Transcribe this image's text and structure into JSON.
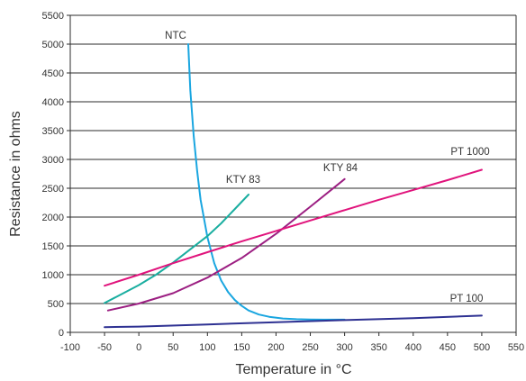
{
  "chart_data": {
    "type": "line",
    "title": "",
    "xlabel": "Temperature in °C",
    "ylabel": "Resistance in ohms",
    "xlim": [
      -100,
      550
    ],
    "ylim": [
      0,
      5500
    ],
    "xticks": [
      -100,
      -50,
      0,
      50,
      100,
      150,
      200,
      250,
      300,
      350,
      400,
      450,
      500,
      550
    ],
    "yticks": [
      0,
      500,
      1000,
      1500,
      2000,
      2500,
      3000,
      3500,
      4000,
      4500,
      5000,
      5500
    ],
    "grid": "horizontal",
    "legend": "none",
    "series": [
      {
        "name": "NTC",
        "color": "#1aa6e0",
        "points": [
          [
            72,
            5000
          ],
          [
            75,
            4200
          ],
          [
            80,
            3400
          ],
          [
            85,
            2800
          ],
          [
            90,
            2300
          ],
          [
            100,
            1650
          ],
          [
            110,
            1200
          ],
          [
            120,
            900
          ],
          [
            130,
            700
          ],
          [
            140,
            560
          ],
          [
            150,
            460
          ],
          [
            160,
            380
          ],
          [
            175,
            310
          ],
          [
            190,
            270
          ],
          [
            210,
            240
          ],
          [
            230,
            228
          ],
          [
            250,
            222
          ],
          [
            270,
            220
          ],
          [
            300,
            220
          ]
        ]
      },
      {
        "name": "KTY 83",
        "color": "#1aaea0",
        "points": [
          [
            -50,
            510
          ],
          [
            0,
            820
          ],
          [
            25,
            1000
          ],
          [
            50,
            1210
          ],
          [
            100,
            1670
          ],
          [
            120,
            1890
          ],
          [
            140,
            2140
          ],
          [
            160,
            2390
          ]
        ]
      },
      {
        "name": "KTY 84",
        "color": "#9c1f82",
        "points": [
          [
            -45,
            380
          ],
          [
            0,
            500
          ],
          [
            50,
            680
          ],
          [
            100,
            950
          ],
          [
            150,
            1290
          ],
          [
            200,
            1710
          ],
          [
            250,
            2180
          ],
          [
            300,
            2660
          ]
        ]
      },
      {
        "name": "PT 1000",
        "color": "#e0147c",
        "points": [
          [
            -50,
            810
          ],
          [
            0,
            1000
          ],
          [
            50,
            1200
          ],
          [
            100,
            1390
          ],
          [
            150,
            1580
          ],
          [
            200,
            1760
          ],
          [
            250,
            1940
          ],
          [
            300,
            2120
          ],
          [
            350,
            2300
          ],
          [
            400,
            2470
          ],
          [
            450,
            2640
          ],
          [
            500,
            2820
          ]
        ]
      },
      {
        "name": "PT 100",
        "color": "#2e3192",
        "points": [
          [
            -50,
            90
          ],
          [
            0,
            100
          ],
          [
            100,
            138
          ],
          [
            200,
            176
          ],
          [
            300,
            212
          ],
          [
            400,
            247
          ],
          [
            500,
            290
          ]
        ]
      }
    ]
  }
}
